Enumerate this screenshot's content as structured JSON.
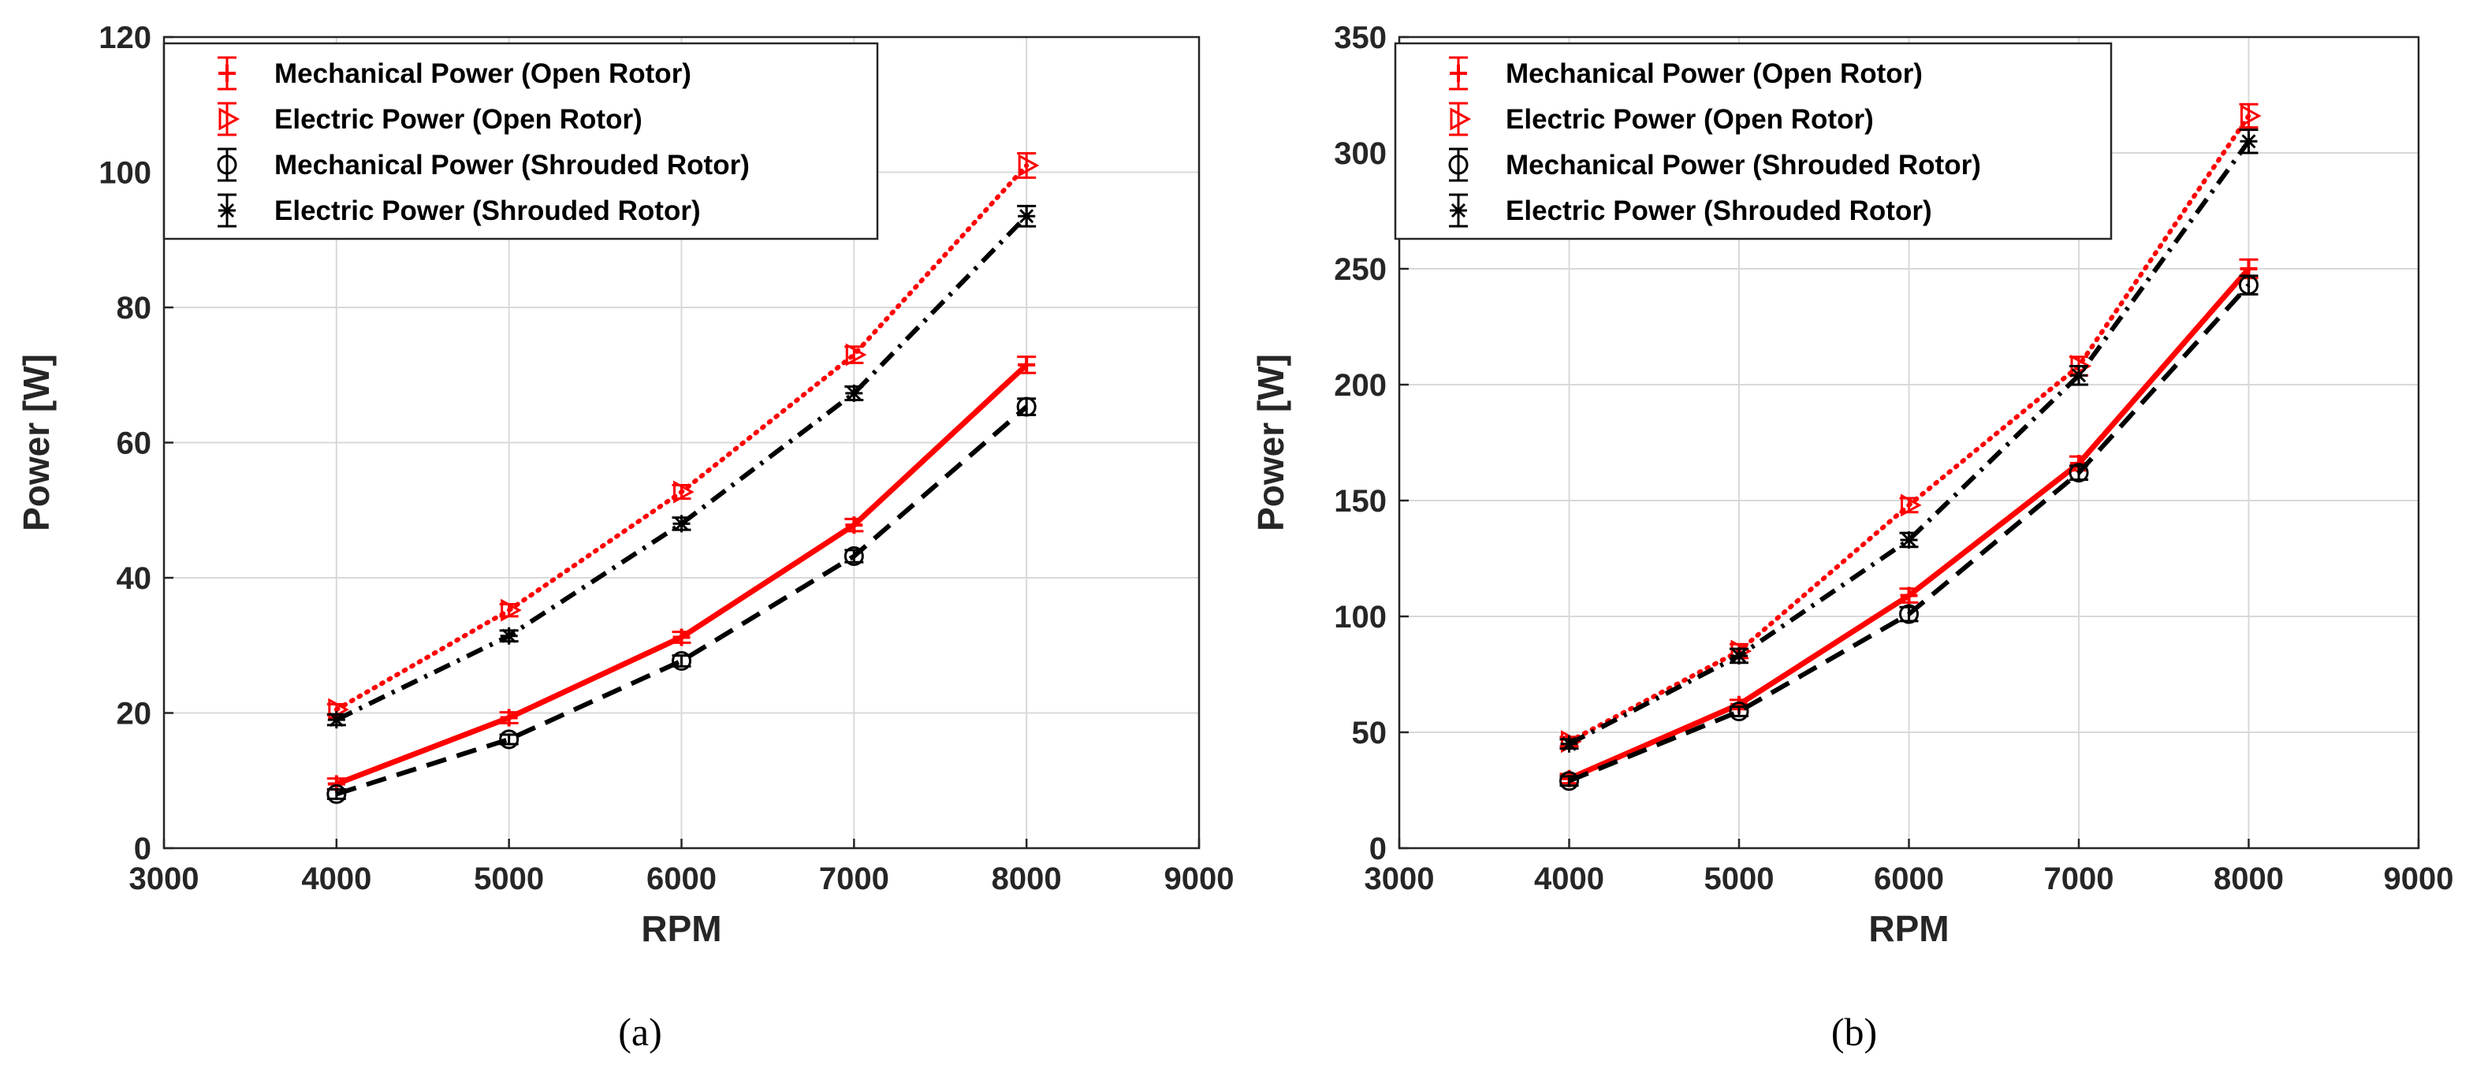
{
  "chart_data": [
    {
      "type": "line",
      "caption": "(a)",
      "xlabel": "RPM",
      "ylabel": "Power [W]",
      "xlim": [
        3000,
        9000
      ],
      "ylim": [
        0,
        120
      ],
      "xticks": [
        3000,
        4000,
        5000,
        6000,
        7000,
        8000,
        9000
      ],
      "yticks": [
        0,
        20,
        40,
        60,
        80,
        100,
        120
      ],
      "grid": true,
      "legend_position": "top-left",
      "series": [
        {
          "name": "Mechanical Power (Open Rotor)",
          "color": "#ff0000",
          "style": "solid",
          "marker": "plus",
          "x": [
            4000,
            5000,
            6000,
            7000,
            8000
          ],
          "values": [
            9.5,
            19.3,
            31.2,
            47.8,
            71.5
          ],
          "errors": [
            0.8,
            0.8,
            0.8,
            0.9,
            1.2
          ]
        },
        {
          "name": "Electric Power (Open Rotor)",
          "color": "#ff0000",
          "style": "dotted",
          "marker": "triangle-right",
          "x": [
            4000,
            5000,
            6000,
            7000,
            8000
          ],
          "values": [
            20.5,
            35.2,
            52.7,
            73.0,
            101.0
          ],
          "errors": [
            0.8,
            0.9,
            1.0,
            1.2,
            1.8
          ]
        },
        {
          "name": "Mechanical Power (Shrouded Rotor)",
          "color": "#000000",
          "style": "dashed",
          "marker": "circle",
          "x": [
            4000,
            5000,
            6000,
            7000,
            8000
          ],
          "values": [
            8.0,
            16.1,
            27.7,
            43.2,
            65.3
          ],
          "errors": [
            0.7,
            0.7,
            0.8,
            0.9,
            1.2
          ]
        },
        {
          "name": "Electric Power (Shrouded Rotor)",
          "color": "#000000",
          "style": "dashdot",
          "marker": "asterisk",
          "x": [
            4000,
            5000,
            6000,
            7000,
            8000
          ],
          "values": [
            19.0,
            31.4,
            48.0,
            67.3,
            93.5
          ],
          "errors": [
            0.8,
            0.8,
            0.9,
            1.0,
            1.5
          ]
        }
      ]
    },
    {
      "type": "line",
      "caption": "(b)",
      "xlabel": "RPM",
      "ylabel": "Power [W]",
      "xlim": [
        3000,
        9000
      ],
      "ylim": [
        0,
        350
      ],
      "xticks": [
        3000,
        4000,
        5000,
        6000,
        7000,
        8000,
        9000
      ],
      "yticks": [
        0,
        50,
        100,
        150,
        200,
        250,
        300,
        350
      ],
      "grid": true,
      "legend_position": "top-left",
      "series": [
        {
          "name": "Mechanical Power (Open Rotor)",
          "color": "#ff0000",
          "style": "solid",
          "marker": "plus",
          "x": [
            4000,
            5000,
            6000,
            7000,
            8000
          ],
          "values": [
            30,
            62,
            109,
            166,
            250
          ],
          "errors": [
            2,
            2,
            3,
            3,
            4
          ]
        },
        {
          "name": "Electric Power (Open Rotor)",
          "color": "#ff0000",
          "style": "dotted",
          "marker": "triangle-right",
          "x": [
            4000,
            5000,
            6000,
            7000,
            8000
          ],
          "values": [
            46,
            85,
            148,
            208,
            316
          ],
          "errors": [
            2,
            3,
            3,
            4,
            5
          ]
        },
        {
          "name": "Mechanical Power (Shrouded Rotor)",
          "color": "#000000",
          "style": "dashed",
          "marker": "circle",
          "x": [
            4000,
            5000,
            6000,
            7000,
            8000
          ],
          "values": [
            29,
            59,
            101,
            162,
            243
          ],
          "errors": [
            2,
            2,
            3,
            3,
            4
          ]
        },
        {
          "name": "Electric Power (Shrouded Rotor)",
          "color": "#000000",
          "style": "dashdot",
          "marker": "asterisk",
          "x": [
            4000,
            5000,
            6000,
            7000,
            8000
          ],
          "values": [
            45,
            83,
            133,
            204,
            305
          ],
          "errors": [
            2,
            3,
            3,
            4,
            5
          ]
        }
      ]
    }
  ]
}
